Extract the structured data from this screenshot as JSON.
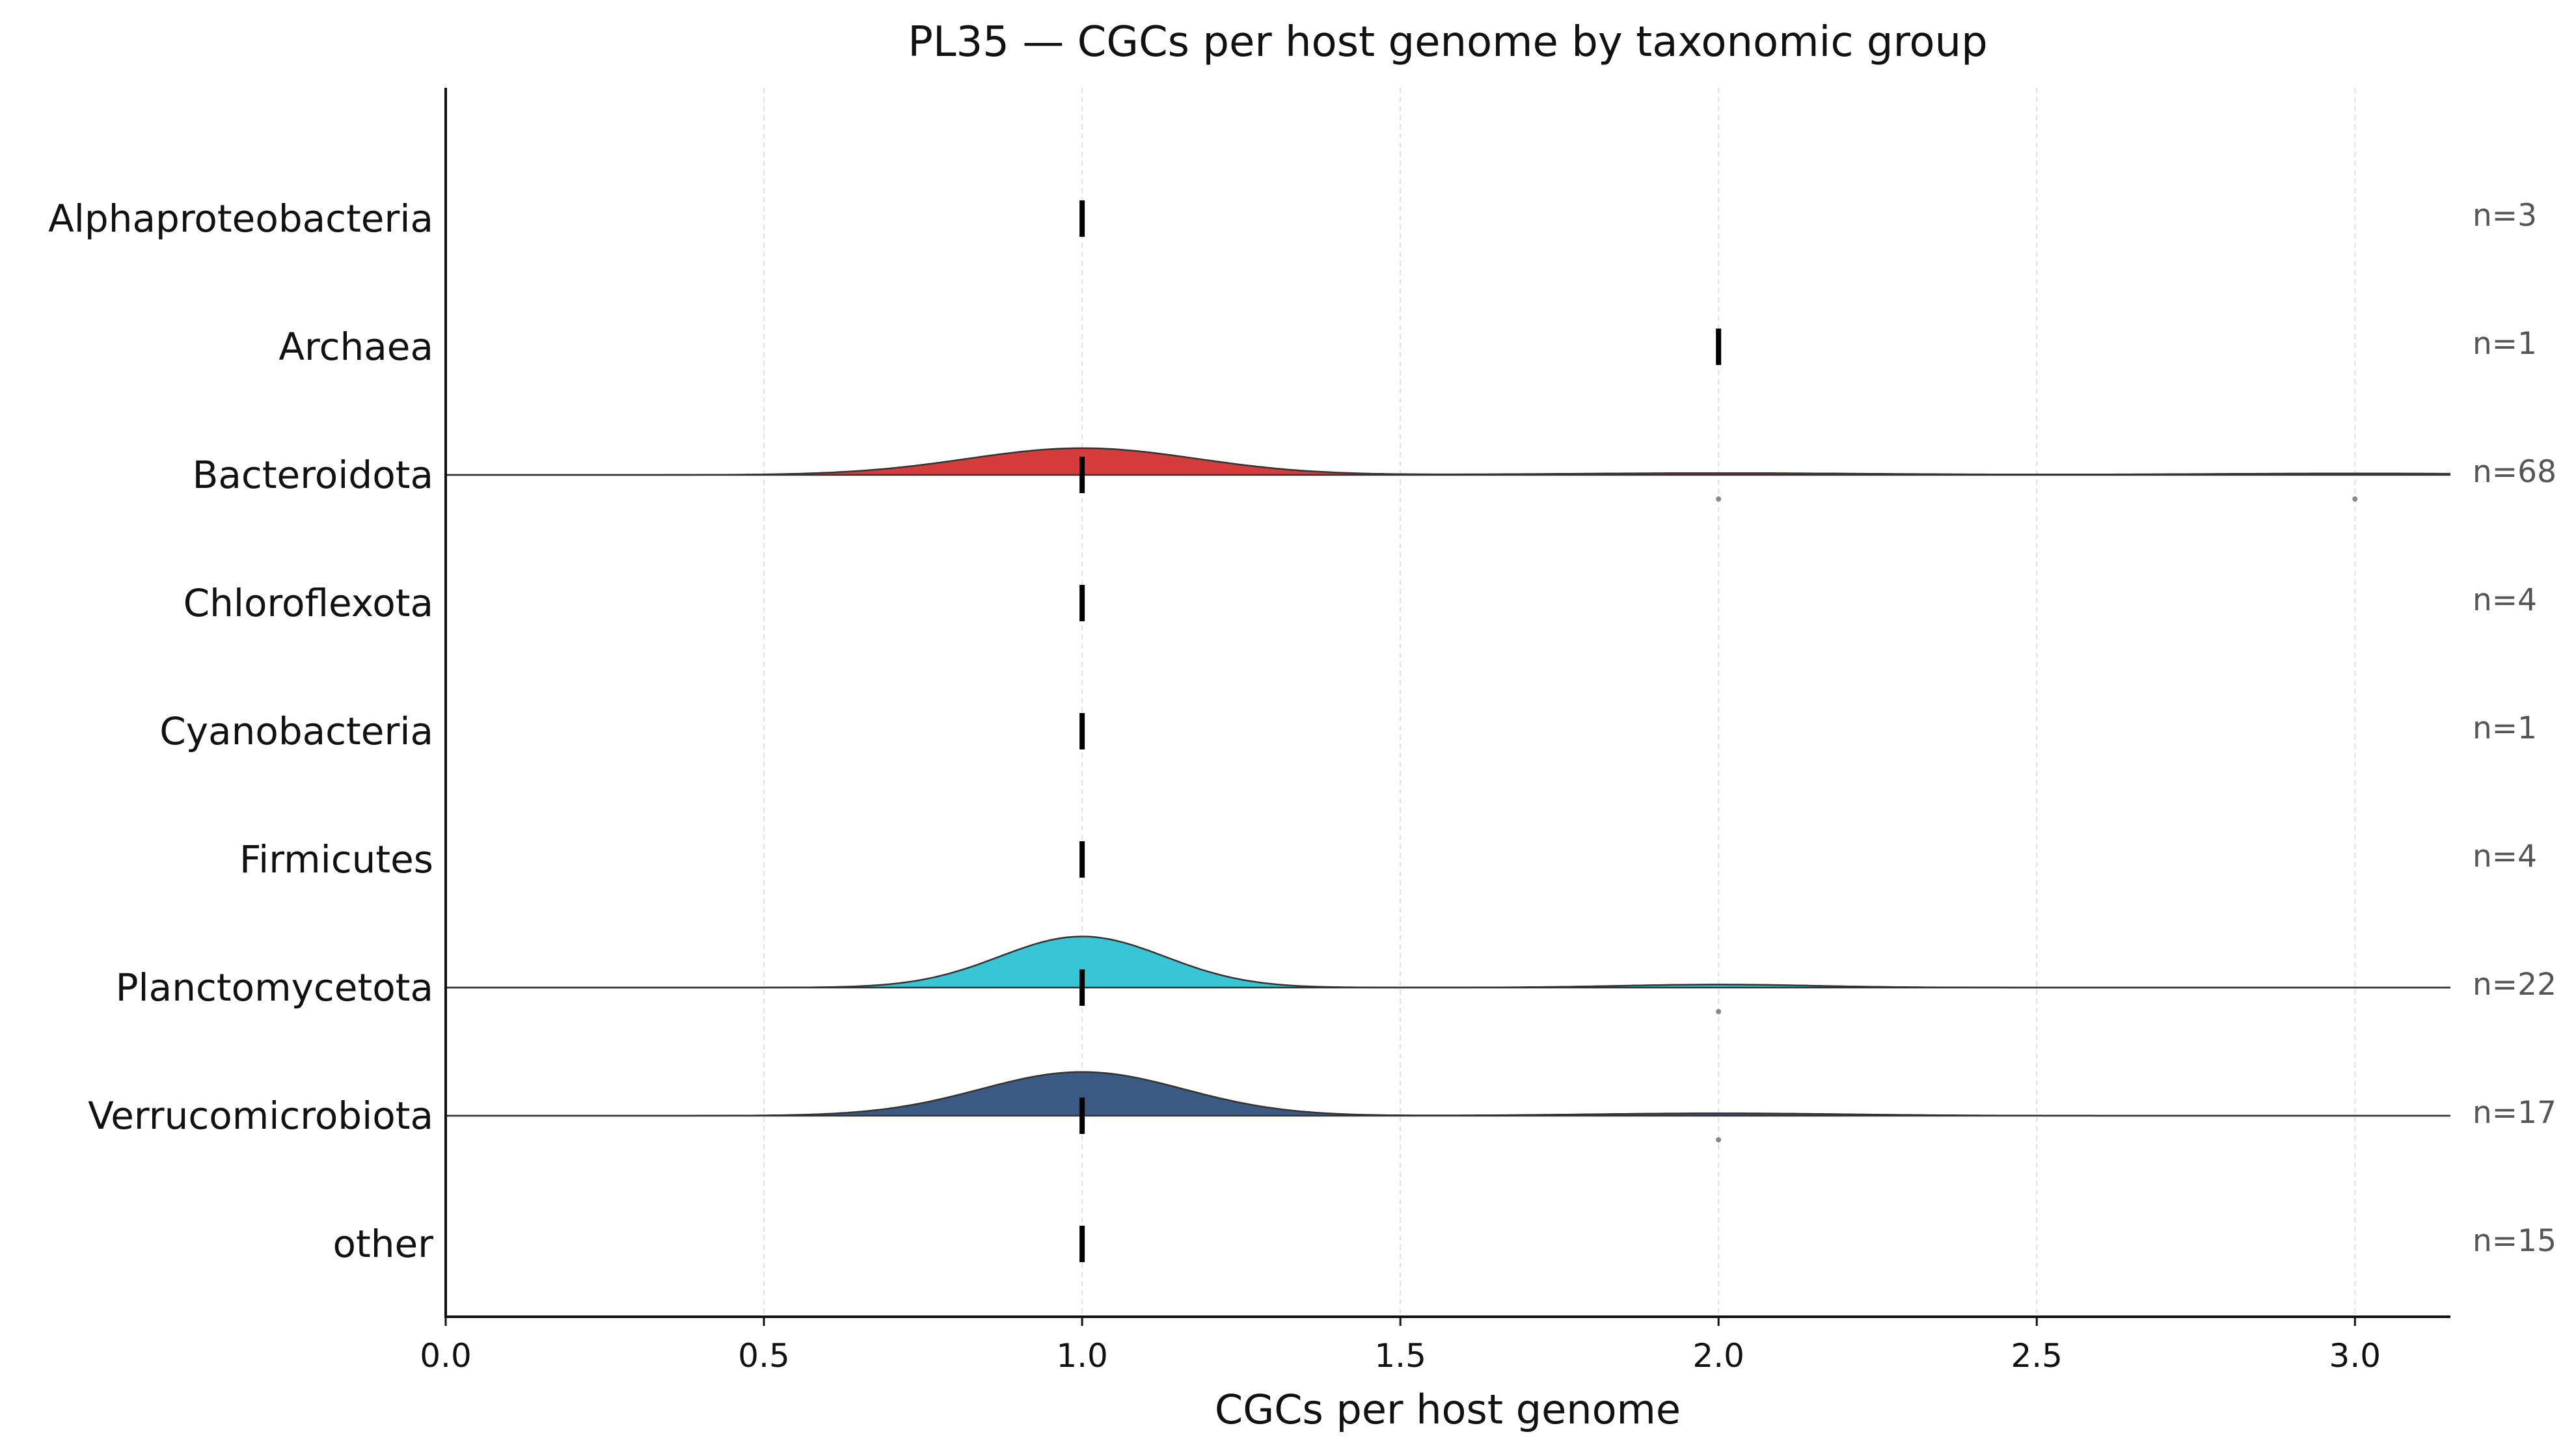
{
  "chart_data": {
    "type": "ridgeline",
    "title": "PL35 — CGCs per host genome by taxonomic group",
    "xlabel": "CGCs per host genome",
    "xlim": [
      0.0,
      3.15
    ],
    "x_ticks": [
      "0.0",
      "0.5",
      "1.0",
      "1.5",
      "2.0",
      "2.5",
      "3.0"
    ],
    "x_tick_values": [
      0.0,
      0.5,
      1.0,
      1.5,
      2.0,
      2.5,
      3.0
    ],
    "grid": "vertical dashed",
    "groups": [
      {
        "name": "Alphaproteobacteria",
        "n_label": "n=3",
        "median": 1.0,
        "density": false,
        "outliers": []
      },
      {
        "name": "Archaea",
        "n_label": "n=1",
        "median": 2.0,
        "density": false,
        "outliers": []
      },
      {
        "name": "Bacteroidota",
        "n_label": "n=68",
        "median": 1.0,
        "density": true,
        "color": "#d63c3c",
        "kde": [
          {
            "mu": 1.0,
            "sigma": 0.18,
            "height": 0.22
          },
          {
            "mu": 2.0,
            "sigma": 0.25,
            "height": 0.015
          },
          {
            "mu": 3.0,
            "sigma": 0.25,
            "height": 0.012
          }
        ],
        "outliers": [
          2.0,
          3.0
        ]
      },
      {
        "name": "Chloroflexota",
        "n_label": "n=4",
        "median": 1.0,
        "density": false,
        "outliers": []
      },
      {
        "name": "Cyanobacteria",
        "n_label": "n=1",
        "median": 1.0,
        "density": false,
        "outliers": []
      },
      {
        "name": "Firmicutes",
        "n_label": "n=4",
        "median": 1.0,
        "density": false,
        "outliers": []
      },
      {
        "name": "Planctomycetota",
        "n_label": "n=22",
        "median": 1.0,
        "density": true,
        "color": "#38c6d6",
        "kde": [
          {
            "mu": 1.0,
            "sigma": 0.13,
            "height": 0.42
          },
          {
            "mu": 2.0,
            "sigma": 0.15,
            "height": 0.025
          }
        ],
        "outliers": [
          2.0
        ]
      },
      {
        "name": "Verrucomicrobiota",
        "n_label": "n=17",
        "median": 1.0,
        "density": true,
        "color": "#3a5a84",
        "kde": [
          {
            "mu": 1.0,
            "sigma": 0.16,
            "height": 0.36
          },
          {
            "mu": 2.0,
            "sigma": 0.2,
            "height": 0.02
          }
        ],
        "outliers": [
          2.0
        ]
      },
      {
        "name": "other",
        "n_label": "n=15",
        "median": 1.0,
        "density": false,
        "outliers": []
      }
    ]
  }
}
